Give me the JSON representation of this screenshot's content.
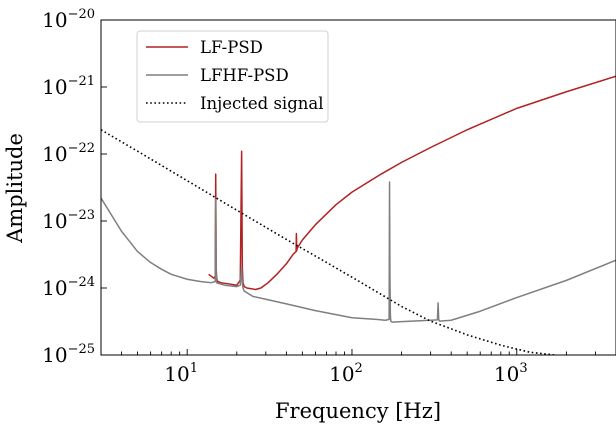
{
  "chart_data": {
    "type": "line",
    "title": "",
    "xlabel": "Frequency [Hz]",
    "ylabel": "Amplitude",
    "xscale": "log",
    "yscale": "log",
    "xlim": [
      3,
      4000
    ],
    "ylim": [
      1e-25,
      1e-20
    ],
    "grid": false,
    "legend_position": "top-left",
    "x_ticks": [
      {
        "value": 10,
        "base": "10",
        "exp": "1"
      },
      {
        "value": 100,
        "base": "10",
        "exp": "2"
      },
      {
        "value": 1000,
        "base": "10",
        "exp": "3"
      }
    ],
    "y_ticks": [
      {
        "value": 1e-25,
        "base": "10",
        "exp": "−25"
      },
      {
        "value": 1e-24,
        "base": "10",
        "exp": "−24"
      },
      {
        "value": 1e-23,
        "base": "10",
        "exp": "−23"
      },
      {
        "value": 1e-22,
        "base": "10",
        "exp": "−22"
      },
      {
        "value": 1e-21,
        "base": "10",
        "exp": "−21"
      },
      {
        "value": 1e-20,
        "base": "10",
        "exp": "−20"
      }
    ],
    "series": [
      {
        "name": "LF-PSD",
        "color": "#b22222",
        "style": "solid",
        "x": [
          13.5,
          14.5,
          14.8,
          14.9,
          15.0,
          15.1,
          15.3,
          16,
          18,
          20,
          21.0,
          21.4,
          21.6,
          21.8,
          22.2,
          23,
          26,
          28,
          31,
          35,
          40,
          44,
          45.8,
          46.0,
          46.2,
          46.5,
          50,
          60,
          80,
          100,
          150,
          200,
          300,
          500,
          1000,
          2000,
          4000
        ],
        "y": [
          1.6e-24,
          1.4e-24,
          1.5e-24,
          5e-23,
          2e-24,
          1.4e-24,
          1.25e-24,
          1.2e-24,
          1.15e-24,
          1.1e-24,
          1.3e-24,
          1.1e-22,
          2.2e-24,
          1.2e-24,
          1.05e-24,
          1e-24,
          9.5e-25,
          1e-24,
          1.2e-24,
          1.6e-24,
          2.3e-24,
          3.2e-24,
          3.5e-24,
          6.5e-24,
          3.6e-24,
          3.9e-24,
          5.2e-24,
          8.8e-24,
          1.75e-23,
          2.7e-23,
          5e-23,
          7.5e-23,
          1.25e-22,
          2.3e-22,
          4.8e-22,
          8.5e-22,
          1.45e-21
        ]
      },
      {
        "name": "LFHF-PSD",
        "color": "#7f7f7f",
        "style": "solid",
        "x": [
          3,
          4,
          5,
          6,
          7,
          8,
          10,
          12,
          14,
          14.8,
          14.9,
          15.0,
          15.1,
          15.3,
          17,
          20,
          21.0,
          21.4,
          21.6,
          21.8,
          22.2,
          25,
          30,
          40,
          60,
          100,
          140,
          160,
          168,
          169,
          170,
          171,
          172,
          175,
          200,
          300,
          330,
          333,
          336,
          340,
          400,
          600,
          1000,
          2000,
          4000
        ],
        "y": [
          2.2e-23,
          7e-24,
          3.5e-24,
          2.4e-24,
          1.9e-24,
          1.6e-24,
          1.35e-24,
          1.25e-24,
          1.2e-24,
          1.25e-24,
          2.1e-23,
          1.6e-24,
          1.2e-24,
          1.18e-24,
          1.1e-24,
          1.05e-24,
          1.1e-24,
          2e-24,
          1.2e-24,
          1e-24,
          9e-25,
          7.5e-25,
          6.8e-25,
          5.8e-25,
          4.6e-25,
          3.6e-25,
          3.4e-25,
          3.3e-25,
          3.4e-25,
          3.8e-23,
          1.5e-24,
          4e-25,
          3.2e-25,
          3.1e-25,
          3.15e-25,
          3.3e-25,
          3.35e-25,
          6e-25,
          3.4e-25,
          3.2e-25,
          3.3e-25,
          4.5e-25,
          7.2e-25,
          1.3e-24,
          2.6e-24
        ]
      },
      {
        "name": "Injected signal",
        "color": "#000000",
        "style": "dotted",
        "x": [
          3,
          5,
          10,
          20,
          40,
          60,
          100,
          200,
          300,
          500,
          800,
          1200,
          1700
        ],
        "y": [
          2.3e-22,
          1.1e-22,
          4e-23,
          1.45e-23,
          5.3e-24,
          3e-24,
          1.45e-24,
          5.3e-25,
          3.2e-25,
          2e-25,
          1.4e-25,
          1.1e-25,
          1e-25
        ]
      }
    ]
  }
}
